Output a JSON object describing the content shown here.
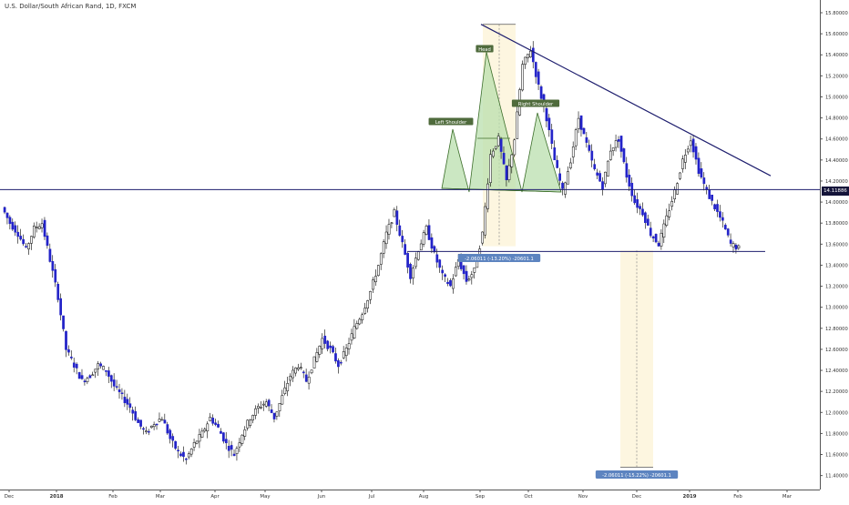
{
  "chart_title": "U.S. Dollar/South African Rand, 1D, FXCM",
  "colors": {
    "up_candle": "#ffffff",
    "down_candle": "#2323c8",
    "candle_outline": "#000000",
    "trendline": "#1e1e6e",
    "pattern_fill": "#b9dfae",
    "range_fill": "#fdf6e0",
    "label_bg": "#4f6b3c",
    "measure_bg": "#5d84c0",
    "price_tag_bg": "#14143a"
  },
  "chart_data": {
    "type": "candlestick",
    "title": "U.S. Dollar/South African Rand, 1D, FXCM",
    "symbol": "USD/ZAR",
    "timeframe": "1D",
    "source": "FXCM",
    "ylim": [
      11.3,
      15.9
    ],
    "y_scale": "linear",
    "y_ticks": [
      "15.80000",
      "15.60000",
      "15.40000",
      "15.20000",
      "15.00000",
      "14.80000",
      "14.60000",
      "14.40000",
      "14.20000",
      "14.00000",
      "13.80000",
      "13.60000",
      "13.40000",
      "13.20000",
      "13.00000",
      "12.80000",
      "12.60000",
      "12.40000",
      "12.20000",
      "12.00000",
      "11.80000",
      "11.60000",
      "11.40000"
    ],
    "x_ticks": [
      "Dec",
      "2018",
      "Feb",
      "Mar",
      "Apr",
      "May",
      "Jun",
      "Jul",
      "Aug",
      "Sep",
      "Oct",
      "Nov",
      "Dec",
      "2019",
      "Feb",
      "Mar"
    ],
    "current_price_label": "14.11886",
    "horizontal_lines": [
      14.11886,
      13.53
    ],
    "trendline": {
      "from": [
        "Sep 5",
        15.69
      ],
      "to": [
        "Mar",
        14.25
      ]
    },
    "annotations": [
      "Head",
      "Left Shoulder",
      "Right Shoulder"
    ],
    "measurements": [
      "-2.06011 (-13.20%) -20601.1",
      "-2.06011 (-15.22%) -20601.1"
    ],
    "grid": false,
    "price_path": [
      [
        13.95,
        13.8
      ],
      [
        13.8,
        13.7
      ],
      [
        13.7,
        13.55
      ],
      [
        13.55,
        13.75
      ],
      [
        13.75,
        13.8
      ],
      [
        13.8,
        13.45
      ],
      [
        13.45,
        13.1
      ],
      [
        13.1,
        12.6
      ],
      [
        12.6,
        12.45
      ],
      [
        12.45,
        12.3
      ],
      [
        12.3,
        12.35
      ],
      [
        12.35,
        12.45
      ],
      [
        12.45,
        12.4
      ],
      [
        12.4,
        12.25
      ],
      [
        12.25,
        12.15
      ],
      [
        12.15,
        12.05
      ],
      [
        12.05,
        11.9
      ],
      [
        11.9,
        11.8
      ],
      [
        11.8,
        11.9
      ],
      [
        11.9,
        11.95
      ],
      [
        11.95,
        11.75
      ],
      [
        11.75,
        11.62
      ],
      [
        11.62,
        11.55
      ],
      [
        11.55,
        11.7
      ],
      [
        11.7,
        11.8
      ],
      [
        11.8,
        11.95
      ],
      [
        11.95,
        11.85
      ],
      [
        11.85,
        11.7
      ],
      [
        11.7,
        11.6
      ],
      [
        11.6,
        11.8
      ],
      [
        11.8,
        11.95
      ],
      [
        11.95,
        12.05
      ],
      [
        12.05,
        12.1
      ],
      [
        12.1,
        11.95
      ],
      [
        11.95,
        12.15
      ],
      [
        12.15,
        12.35
      ],
      [
        12.35,
        12.45
      ],
      [
        12.45,
        12.3
      ],
      [
        12.3,
        12.5
      ],
      [
        12.5,
        12.7
      ],
      [
        12.7,
        12.6
      ],
      [
        12.6,
        12.45
      ],
      [
        12.45,
        12.6
      ],
      [
        12.6,
        12.8
      ],
      [
        12.8,
        12.95
      ],
      [
        12.95,
        13.15
      ],
      [
        13.15,
        13.4
      ],
      [
        13.4,
        13.7
      ],
      [
        13.7,
        13.9
      ],
      [
        13.9,
        13.6
      ],
      [
        13.6,
        13.3
      ],
      [
        13.3,
        13.55
      ],
      [
        13.55,
        13.75
      ],
      [
        13.75,
        13.5
      ],
      [
        13.5,
        13.3
      ],
      [
        13.3,
        13.2
      ],
      [
        13.2,
        13.45
      ],
      [
        13.45,
        13.25
      ],
      [
        13.25,
        13.35
      ],
      [
        13.35,
        13.7
      ],
      [
        13.7,
        14.45
      ],
      [
        14.45,
        14.6
      ],
      [
        14.6,
        14.2
      ],
      [
        14.2,
        14.6
      ],
      [
        14.6,
        15.3
      ],
      [
        15.3,
        15.45
      ],
      [
        15.45,
        15.1
      ],
      [
        15.1,
        14.8
      ],
      [
        14.8,
        14.4
      ],
      [
        14.4,
        14.1
      ],
      [
        14.1,
        14.4
      ],
      [
        14.4,
        14.8
      ],
      [
        14.8,
        14.55
      ],
      [
        14.55,
        14.3
      ],
      [
        14.3,
        14.15
      ],
      [
        14.15,
        14.5
      ],
      [
        14.5,
        14.6
      ],
      [
        14.6,
        14.25
      ],
      [
        14.25,
        14.0
      ],
      [
        14.0,
        13.9
      ],
      [
        13.9,
        13.7
      ],
      [
        13.7,
        13.6
      ],
      [
        13.6,
        13.85
      ],
      [
        13.85,
        14.1
      ],
      [
        14.1,
        14.4
      ],
      [
        14.4,
        14.6
      ],
      [
        14.6,
        14.3
      ],
      [
        14.3,
        14.1
      ],
      [
        14.1,
        13.95
      ],
      [
        13.95,
        13.8
      ],
      [
        13.8,
        13.6
      ],
      [
        13.6,
        13.56
      ]
    ]
  }
}
